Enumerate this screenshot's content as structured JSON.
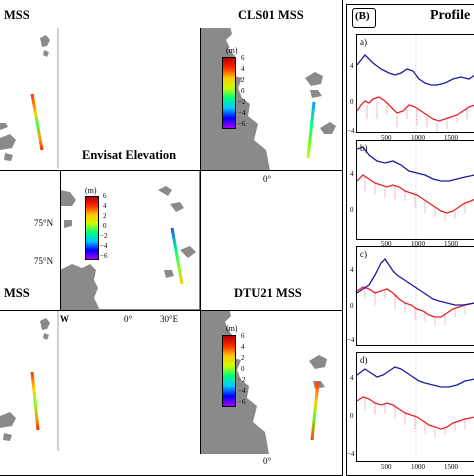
{
  "panel_a_titles": {
    "top_left": "MSS",
    "top_right": "CLS01 MSS",
    "center": "Envisat Elevation",
    "bottom_left": "MSS",
    "bottom_right": "DTU21 MSS"
  },
  "map_labels": {
    "lat_upper": "75°N",
    "lat_lower": "75°N",
    "lon_zero_top": "0°",
    "lon_west": "W",
    "lon_zero_center": "0°",
    "lon_30e": "30°E",
    "lon_zero_bottom": "0°"
  },
  "colorbar": {
    "unit": "(m)",
    "ticks": [
      "6",
      "4",
      "2",
      "0",
      "−2",
      "−4",
      "−6"
    ],
    "range": [
      -6,
      6
    ],
    "colors": [
      "#7f00ff",
      "#0000ff",
      "#00c8ff",
      "#00ff80",
      "#c8ff00",
      "#ffc800",
      "#ff2a00",
      "#b40000"
    ]
  },
  "panel_b": {
    "label": "(B)",
    "title": "Profile",
    "subplots": [
      {
        "label": "a)",
        "y_ticks": [
          "4",
          "0"
        ],
        "x_ticks": [
          "500",
          "1000",
          "1500"
        ]
      },
      {
        "label": "b)",
        "y_ticks": [
          "4",
          "0"
        ],
        "x_ticks": [
          "500",
          "1000",
          "1500"
        ]
      },
      {
        "label": "c)",
        "y_ticks": [
          "4",
          "0",
          "−4"
        ],
        "x_ticks": [
          "500",
          "1000",
          "1500"
        ]
      },
      {
        "label": "d)",
        "y_ticks": [
          "4",
          "0",
          "−4"
        ],
        "x_ticks": [
          "500",
          "1000",
          "1500"
        ]
      }
    ],
    "top_y_tick": "−4",
    "series_colors": {
      "model": "#1a1aa0",
      "observed": "#e8202a"
    }
  }
}
